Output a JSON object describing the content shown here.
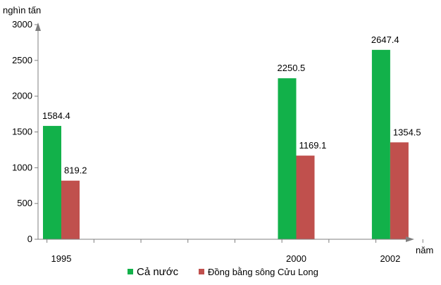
{
  "chart_data": {
    "type": "bar",
    "x_unit": "năm",
    "y_unit": "nghìn tấn",
    "categories": [
      "1995",
      "2000",
      "2002"
    ],
    "x_years": [
      1995,
      2000,
      2002
    ],
    "y_ticks": [
      "0",
      "500",
      "1000",
      "1500",
      "2000",
      "2500",
      "3000"
    ],
    "ylim": [
      0,
      3000
    ],
    "grid": false,
    "legend_position": "bottom",
    "series": [
      {
        "name": "Cả nước",
        "color": "#12b14a",
        "values": [
          1584.4,
          2250.5,
          2647.4
        ],
        "labels": [
          "1584.4",
          "2250.5",
          "2647.4"
        ]
      },
      {
        "name": "Đồng bằng sông Cửu Long",
        "color": "#c0504d",
        "values": [
          819.2,
          1169.1,
          1354.5
        ],
        "labels": [
          "819.2",
          "1169.1",
          "1354.5"
        ]
      }
    ]
  }
}
